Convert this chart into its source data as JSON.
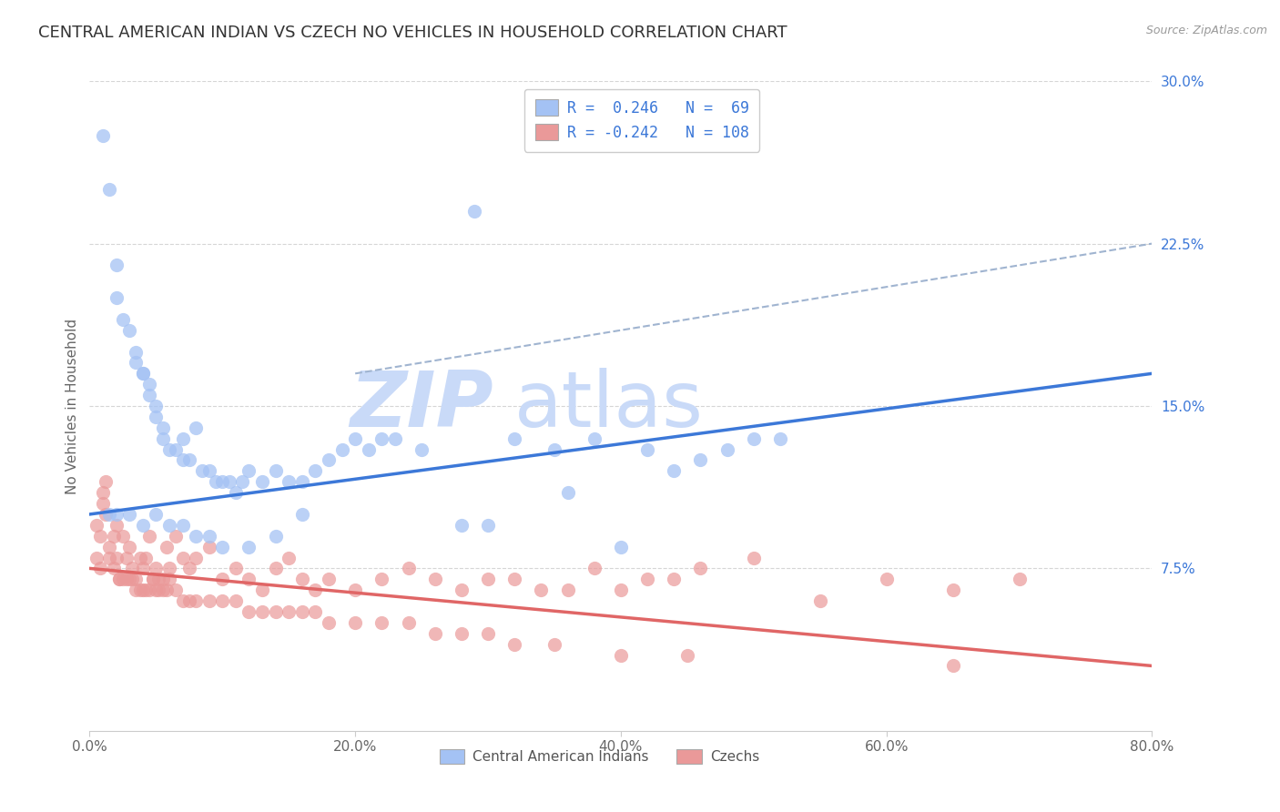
{
  "title": "CENTRAL AMERICAN INDIAN VS CZECH NO VEHICLES IN HOUSEHOLD CORRELATION CHART",
  "source": "Source: ZipAtlas.com",
  "ylabel_label": "No Vehicles in Household",
  "legend_labels": [
    "Central American Indians",
    "Czechs"
  ],
  "color_blue": "#a4c2f4",
  "color_pink": "#ea9999",
  "color_blue_line": "#3c78d8",
  "color_pink_line": "#e06666",
  "color_dashed_line": "#a0b4d0",
  "watermark_zip": "ZIP",
  "watermark_atlas": "atlas",
  "watermark_color_zip": "#c9daf8",
  "watermark_color_atlas": "#c9daf8",
  "xlim": [
    0,
    80
  ],
  "ylim": [
    0,
    30
  ],
  "xtick_vals": [
    0,
    20,
    40,
    60,
    80
  ],
  "ytick_vals": [
    7.5,
    15.0,
    22.5,
    30.0
  ],
  "blue_line_x0": 0,
  "blue_line_x1": 80,
  "blue_line_y0": 10.0,
  "blue_line_y1": 16.5,
  "pink_line_x0": 0,
  "pink_line_x1": 80,
  "pink_line_y0": 7.5,
  "pink_line_y1": 3.0,
  "dashed_line_x0": 20,
  "dashed_line_x1": 80,
  "dashed_line_y0": 16.5,
  "dashed_line_y1": 22.5,
  "title_fontsize": 13,
  "axis_label_fontsize": 11,
  "tick_fontsize": 11,
  "watermark_fontsize_zip": 62,
  "watermark_fontsize_atlas": 62,
  "blue_scatter_x": [
    1.0,
    1.5,
    2.0,
    2.0,
    2.5,
    3.0,
    3.5,
    3.5,
    4.0,
    4.0,
    4.5,
    4.5,
    5.0,
    5.0,
    5.5,
    5.5,
    6.0,
    6.5,
    7.0,
    7.0,
    7.5,
    8.0,
    8.5,
    9.0,
    9.5,
    10.0,
    10.5,
    11.0,
    11.5,
    12.0,
    13.0,
    14.0,
    15.0,
    16.0,
    17.0,
    18.0,
    19.0,
    20.0,
    21.0,
    22.0,
    23.0,
    25.0,
    28.0,
    30.0,
    32.0,
    35.0,
    36.0,
    38.0,
    40.0,
    42.0,
    44.0,
    46.0,
    48.0,
    50.0,
    52.0,
    29.0,
    1.5,
    2.0,
    3.0,
    4.0,
    5.0,
    6.0,
    7.0,
    8.0,
    9.0,
    10.0,
    12.0,
    14.0,
    16.0
  ],
  "blue_scatter_y": [
    27.5,
    25.0,
    21.5,
    20.0,
    19.0,
    18.5,
    17.5,
    17.0,
    16.5,
    16.5,
    16.0,
    15.5,
    15.0,
    14.5,
    14.0,
    13.5,
    13.0,
    13.0,
    12.5,
    13.5,
    12.5,
    14.0,
    12.0,
    12.0,
    11.5,
    11.5,
    11.5,
    11.0,
    11.5,
    12.0,
    11.5,
    12.0,
    11.5,
    11.5,
    12.0,
    12.5,
    13.0,
    13.5,
    13.0,
    13.5,
    13.5,
    13.0,
    9.5,
    9.5,
    13.5,
    13.0,
    11.0,
    13.5,
    8.5,
    13.0,
    12.0,
    12.5,
    13.0,
    13.5,
    13.5,
    24.0,
    10.0,
    10.0,
    10.0,
    9.5,
    10.0,
    9.5,
    9.5,
    9.0,
    9.0,
    8.5,
    8.5,
    9.0,
    10.0
  ],
  "pink_scatter_x": [
    0.5,
    0.8,
    1.0,
    1.2,
    1.5,
    1.8,
    2.0,
    2.2,
    2.5,
    2.8,
    3.0,
    3.2,
    3.5,
    3.8,
    4.0,
    4.2,
    4.5,
    4.8,
    5.0,
    5.2,
    5.5,
    5.8,
    6.0,
    6.5,
    7.0,
    7.5,
    8.0,
    9.0,
    10.0,
    11.0,
    12.0,
    13.0,
    14.0,
    15.0,
    16.0,
    17.0,
    18.0,
    20.0,
    22.0,
    24.0,
    26.0,
    28.0,
    30.0,
    32.0,
    34.0,
    36.0,
    38.0,
    40.0,
    42.0,
    44.0,
    46.0,
    50.0,
    55.0,
    60.0,
    65.0,
    70.0,
    0.5,
    0.8,
    1.0,
    1.2,
    1.5,
    1.8,
    2.0,
    2.2,
    2.5,
    2.8,
    3.0,
    3.2,
    3.5,
    3.8,
    4.0,
    4.2,
    4.5,
    4.8,
    5.0,
    5.2,
    5.5,
    5.8,
    6.0,
    6.5,
    7.0,
    7.5,
    8.0,
    9.0,
    10.0,
    11.0,
    12.0,
    13.0,
    14.0,
    15.0,
    16.0,
    17.0,
    18.0,
    20.0,
    22.0,
    24.0,
    26.0,
    28.0,
    30.0,
    32.0,
    35.0,
    40.0,
    45.0,
    65.0
  ],
  "pink_scatter_y": [
    9.5,
    9.0,
    11.0,
    11.5,
    8.5,
    9.0,
    9.5,
    7.0,
    9.0,
    8.0,
    8.5,
    7.5,
    7.0,
    8.0,
    7.5,
    8.0,
    9.0,
    7.0,
    7.5,
    7.0,
    7.0,
    8.5,
    7.5,
    9.0,
    8.0,
    7.5,
    8.0,
    8.5,
    7.0,
    7.5,
    7.0,
    6.5,
    7.5,
    8.0,
    7.0,
    6.5,
    7.0,
    6.5,
    7.0,
    7.5,
    7.0,
    6.5,
    7.0,
    7.0,
    6.5,
    6.5,
    7.5,
    6.5,
    7.0,
    7.0,
    7.5,
    8.0,
    6.0,
    7.0,
    6.5,
    7.0,
    8.0,
    7.5,
    10.5,
    10.0,
    8.0,
    7.5,
    8.0,
    7.0,
    7.0,
    7.0,
    7.0,
    7.0,
    6.5,
    6.5,
    6.5,
    6.5,
    6.5,
    7.0,
    6.5,
    6.5,
    6.5,
    6.5,
    7.0,
    6.5,
    6.0,
    6.0,
    6.0,
    6.0,
    6.0,
    6.0,
    5.5,
    5.5,
    5.5,
    5.5,
    5.5,
    5.5,
    5.0,
    5.0,
    5.0,
    5.0,
    4.5,
    4.5,
    4.5,
    4.0,
    4.0,
    3.5,
    3.5,
    3.0
  ]
}
